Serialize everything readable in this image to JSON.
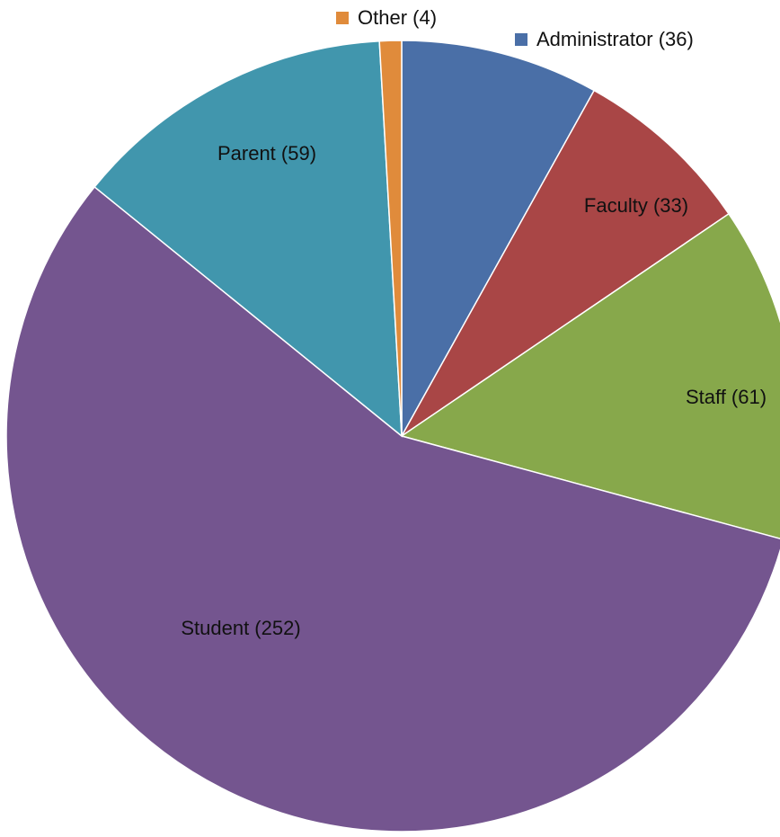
{
  "chart_data": {
    "type": "pie",
    "categories": [
      "Administrator (36)",
      "Faculty (33)",
      "Staff (61)",
      "Student (252)",
      "Parent (59)",
      "Other (4)"
    ],
    "values": [
      36,
      33,
      61,
      252,
      59,
      4
    ],
    "colors": [
      "#4a6fa7",
      "#a94646",
      "#87a84b",
      "#74558f",
      "#4196ad",
      "#e08b3b"
    ]
  }
}
